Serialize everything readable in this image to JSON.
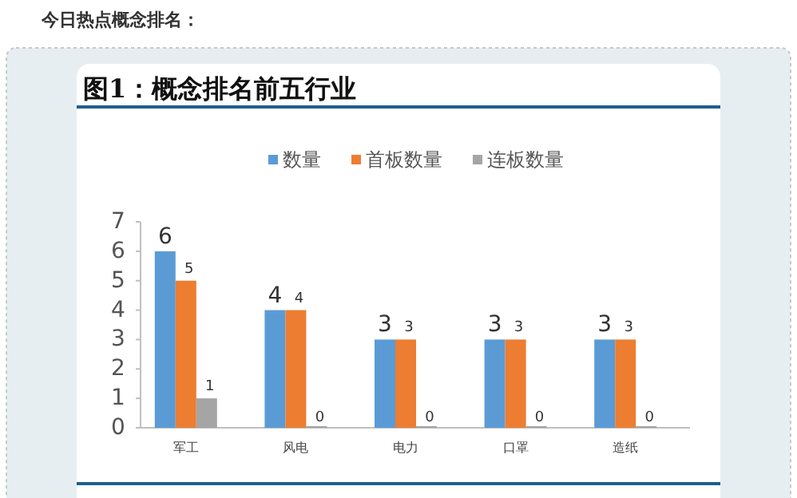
{
  "chart_data": {
    "type": "bar",
    "title": "图1：概念排名前五行业",
    "annotations": [
      "今日热点概念排名："
    ],
    "categories": [
      "军工",
      "风电",
      "电力",
      "口罩",
      "造纸"
    ],
    "series": [
      {
        "name": "数量",
        "color": "#5b9bd5",
        "values": [
          6,
          4,
          3,
          3,
          3
        ]
      },
      {
        "name": "首板数量",
        "color": "#ed7d31",
        "values": [
          5,
          4,
          3,
          3,
          3
        ]
      },
      {
        "name": "连板数量",
        "color": "#a5a5a5",
        "values": [
          1,
          0,
          0,
          0,
          0
        ]
      }
    ],
    "ylim": [
      0,
      7
    ],
    "yticks": [
      0,
      1,
      2,
      3,
      4,
      5,
      6,
      7
    ],
    "data_labels": true,
    "legend": "top"
  }
}
